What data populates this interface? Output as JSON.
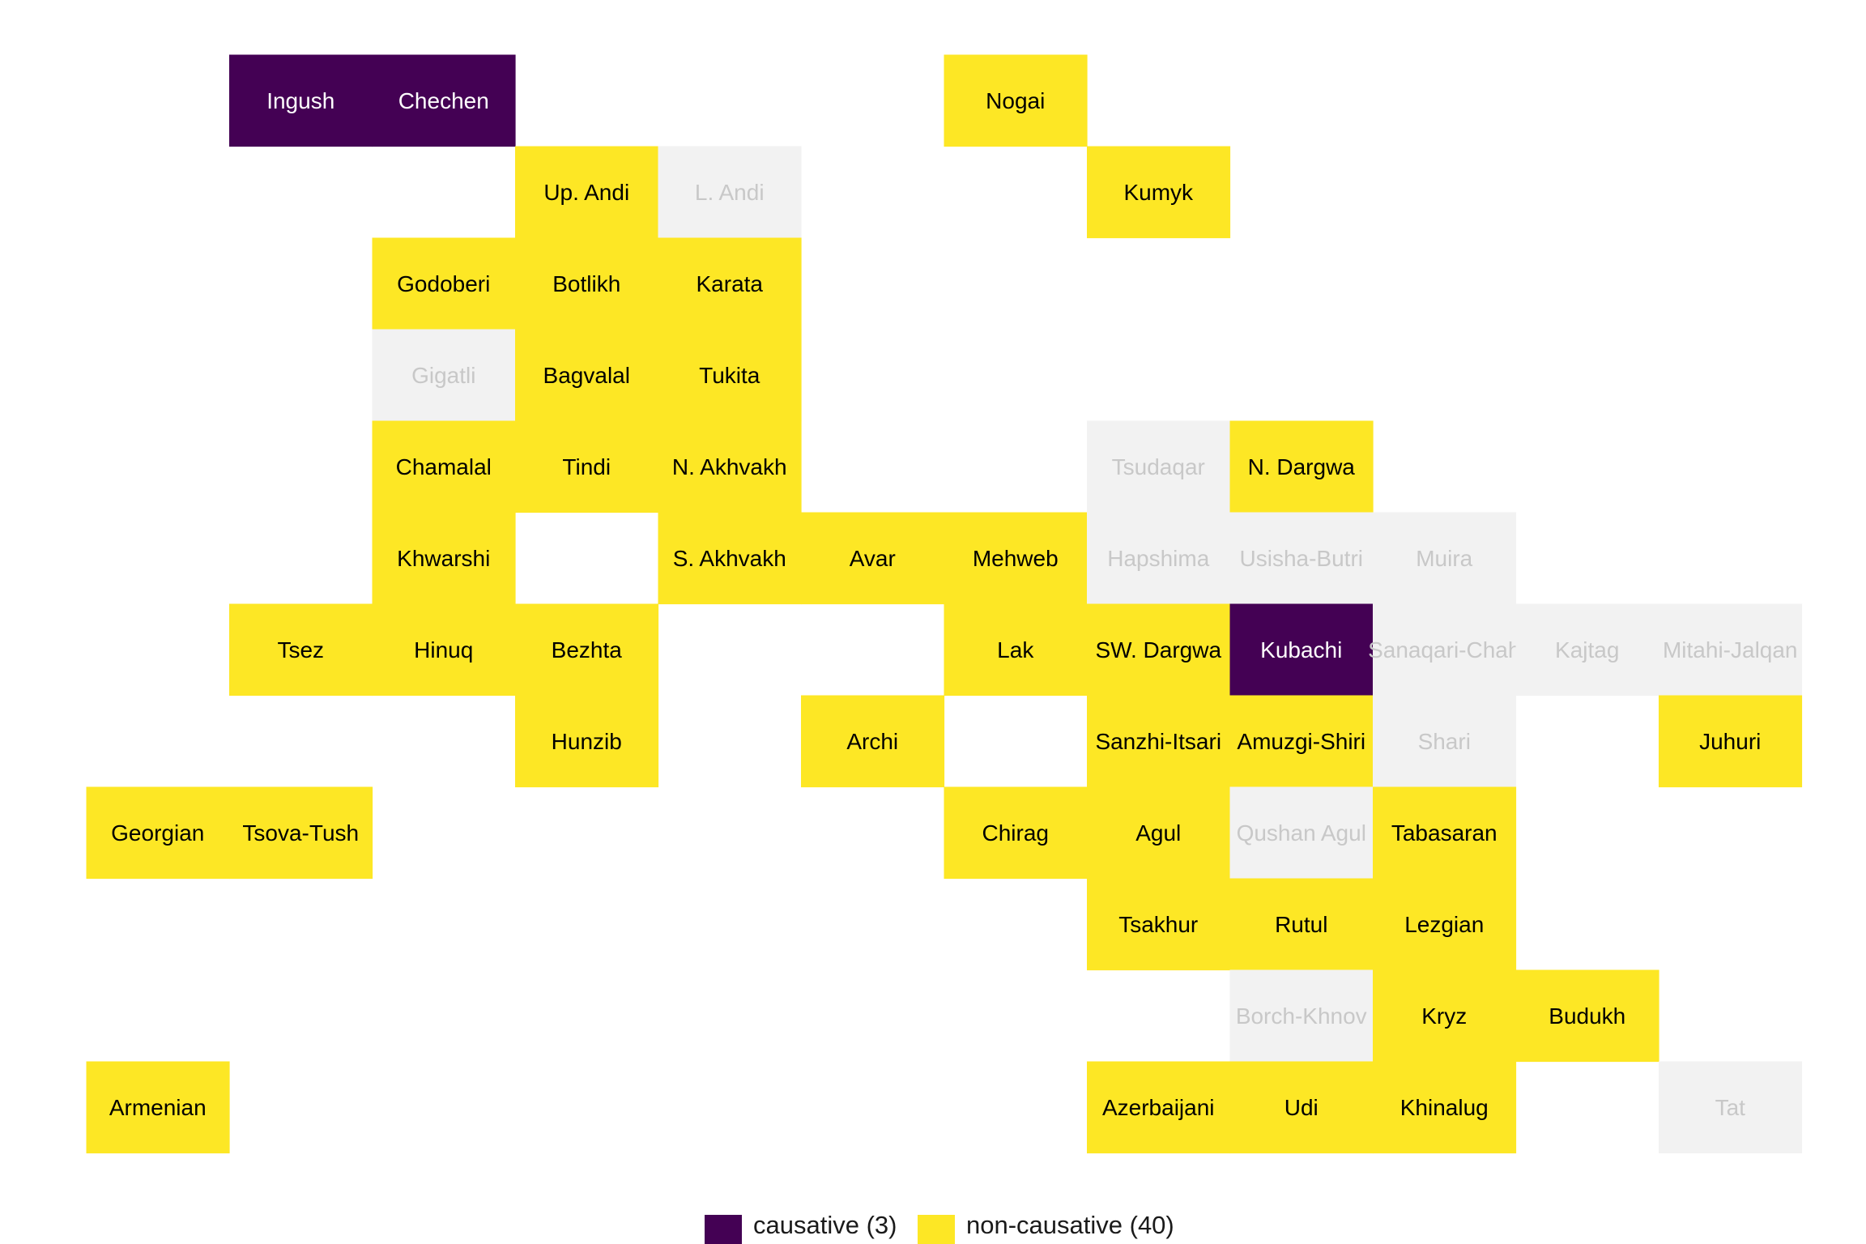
{
  "chart_data": {
    "type": "heatmap",
    "title": "",
    "categories": [
      "causative",
      "non-causative",
      "no data"
    ],
    "colors": {
      "causative": "#440154",
      "non-causative": "#FDE725",
      "no data": "#F2F2F2",
      "causative_text": "#FFFFFF",
      "non-causative_text": "#000000",
      "no data_text": "#C8C8C8"
    },
    "cells": [
      {
        "label": "Ingush",
        "col": 2,
        "row": 1,
        "value": "causative"
      },
      {
        "label": "Chechen",
        "col": 3,
        "row": 1,
        "value": "causative"
      },
      {
        "label": "Nogai",
        "col": 7,
        "row": 1,
        "value": "non-causative"
      },
      {
        "label": "Up. Andi",
        "col": 4,
        "row": 2,
        "value": "non-causative"
      },
      {
        "label": "L. Andi",
        "col": 5,
        "row": 2,
        "value": "no data"
      },
      {
        "label": "Kumyk",
        "col": 8,
        "row": 2,
        "value": "non-causative"
      },
      {
        "label": "Godoberi",
        "col": 3,
        "row": 3,
        "value": "non-causative"
      },
      {
        "label": "Botlikh",
        "col": 4,
        "row": 3,
        "value": "non-causative"
      },
      {
        "label": "Karata",
        "col": 5,
        "row": 3,
        "value": "non-causative"
      },
      {
        "label": "Gigatli",
        "col": 3,
        "row": 4,
        "value": "no data"
      },
      {
        "label": "Bagvalal",
        "col": 4,
        "row": 4,
        "value": "non-causative"
      },
      {
        "label": "Tukita",
        "col": 5,
        "row": 4,
        "value": "non-causative"
      },
      {
        "label": "Chamalal",
        "col": 3,
        "row": 5,
        "value": "non-causative"
      },
      {
        "label": "Tindi",
        "col": 4,
        "row": 5,
        "value": "non-causative"
      },
      {
        "label": "N. Akhvakh",
        "col": 5,
        "row": 5,
        "value": "non-causative"
      },
      {
        "label": "Tsudaqar",
        "col": 8,
        "row": 5,
        "value": "no data"
      },
      {
        "label": "N. Dargwa",
        "col": 9,
        "row": 5,
        "value": "non-causative"
      },
      {
        "label": "Khwarshi",
        "col": 3,
        "row": 6,
        "value": "non-causative"
      },
      {
        "label": "S. Akhvakh",
        "col": 5,
        "row": 6,
        "value": "non-causative"
      },
      {
        "label": "Avar",
        "col": 6,
        "row": 6,
        "value": "non-causative"
      },
      {
        "label": "Mehweb",
        "col": 7,
        "row": 6,
        "value": "non-causative"
      },
      {
        "label": "Hapshima",
        "col": 8,
        "row": 6,
        "value": "no data"
      },
      {
        "label": "Usisha-Butri",
        "col": 9,
        "row": 6,
        "value": "no data"
      },
      {
        "label": "Muira",
        "col": 10,
        "row": 6,
        "value": "no data"
      },
      {
        "label": "Tsez",
        "col": 2,
        "row": 7,
        "value": "non-causative"
      },
      {
        "label": "Hinuq",
        "col": 3,
        "row": 7,
        "value": "non-causative"
      },
      {
        "label": "Bezhta",
        "col": 4,
        "row": 7,
        "value": "non-causative"
      },
      {
        "label": "Lak",
        "col": 7,
        "row": 7,
        "value": "non-causative"
      },
      {
        "label": "SW. Dargwa",
        "col": 8,
        "row": 7,
        "value": "non-causative"
      },
      {
        "label": "Kubachi",
        "col": 9,
        "row": 7,
        "value": "causative"
      },
      {
        "label": "Sanaqari-Chah",
        "col": 10,
        "row": 7,
        "value": "no data"
      },
      {
        "label": "Kajtag",
        "col": 11,
        "row": 7,
        "value": "no data"
      },
      {
        "label": "Mitahi-Jalqan",
        "col": 12,
        "row": 7,
        "value": "no data"
      },
      {
        "label": "Hunzib",
        "col": 4,
        "row": 8,
        "value": "non-causative"
      },
      {
        "label": "Archi",
        "col": 6,
        "row": 8,
        "value": "non-causative"
      },
      {
        "label": "Sanzhi-Itsari",
        "col": 8,
        "row": 8,
        "value": "non-causative"
      },
      {
        "label": "Amuzgi-Shiri",
        "col": 9,
        "row": 8,
        "value": "non-causative"
      },
      {
        "label": "Shari",
        "col": 10,
        "row": 8,
        "value": "no data"
      },
      {
        "label": "Juhuri",
        "col": 12,
        "row": 8,
        "value": "non-causative"
      },
      {
        "label": "Georgian",
        "col": 1,
        "row": 9,
        "value": "non-causative"
      },
      {
        "label": "Tsova-Tush",
        "col": 2,
        "row": 9,
        "value": "non-causative"
      },
      {
        "label": "Chirag",
        "col": 7,
        "row": 9,
        "value": "non-causative"
      },
      {
        "label": "Agul",
        "col": 8,
        "row": 9,
        "value": "non-causative"
      },
      {
        "label": "Qushan Agul",
        "col": 9,
        "row": 9,
        "value": "no data"
      },
      {
        "label": "Tabasaran",
        "col": 10,
        "row": 9,
        "value": "non-causative"
      },
      {
        "label": "Tsakhur",
        "col": 8,
        "row": 10,
        "value": "non-causative"
      },
      {
        "label": "Rutul",
        "col": 9,
        "row": 10,
        "value": "non-causative"
      },
      {
        "label": "Lezgian",
        "col": 10,
        "row": 10,
        "value": "non-causative"
      },
      {
        "label": "Borch-Khnov",
        "col": 9,
        "row": 11,
        "value": "no data"
      },
      {
        "label": "Kryz",
        "col": 10,
        "row": 11,
        "value": "non-causative"
      },
      {
        "label": "Budukh",
        "col": 11,
        "row": 11,
        "value": "non-causative"
      },
      {
        "label": "Armenian",
        "col": 1,
        "row": 12,
        "value": "non-causative"
      },
      {
        "label": "Azerbaijani",
        "col": 8,
        "row": 12,
        "value": "non-causative"
      },
      {
        "label": "Udi",
        "col": 9,
        "row": 12,
        "value": "non-causative"
      },
      {
        "label": "Khinalug",
        "col": 10,
        "row": 12,
        "value": "non-causative"
      },
      {
        "label": "Tat",
        "col": 12,
        "row": 12,
        "value": "no data"
      }
    ],
    "legend": {
      "position": "bottom",
      "items": [
        {
          "key": "causative",
          "label": "causative (3)"
        },
        {
          "key": "non-causative",
          "label": "non-causative (40)"
        }
      ]
    },
    "grid": false
  }
}
